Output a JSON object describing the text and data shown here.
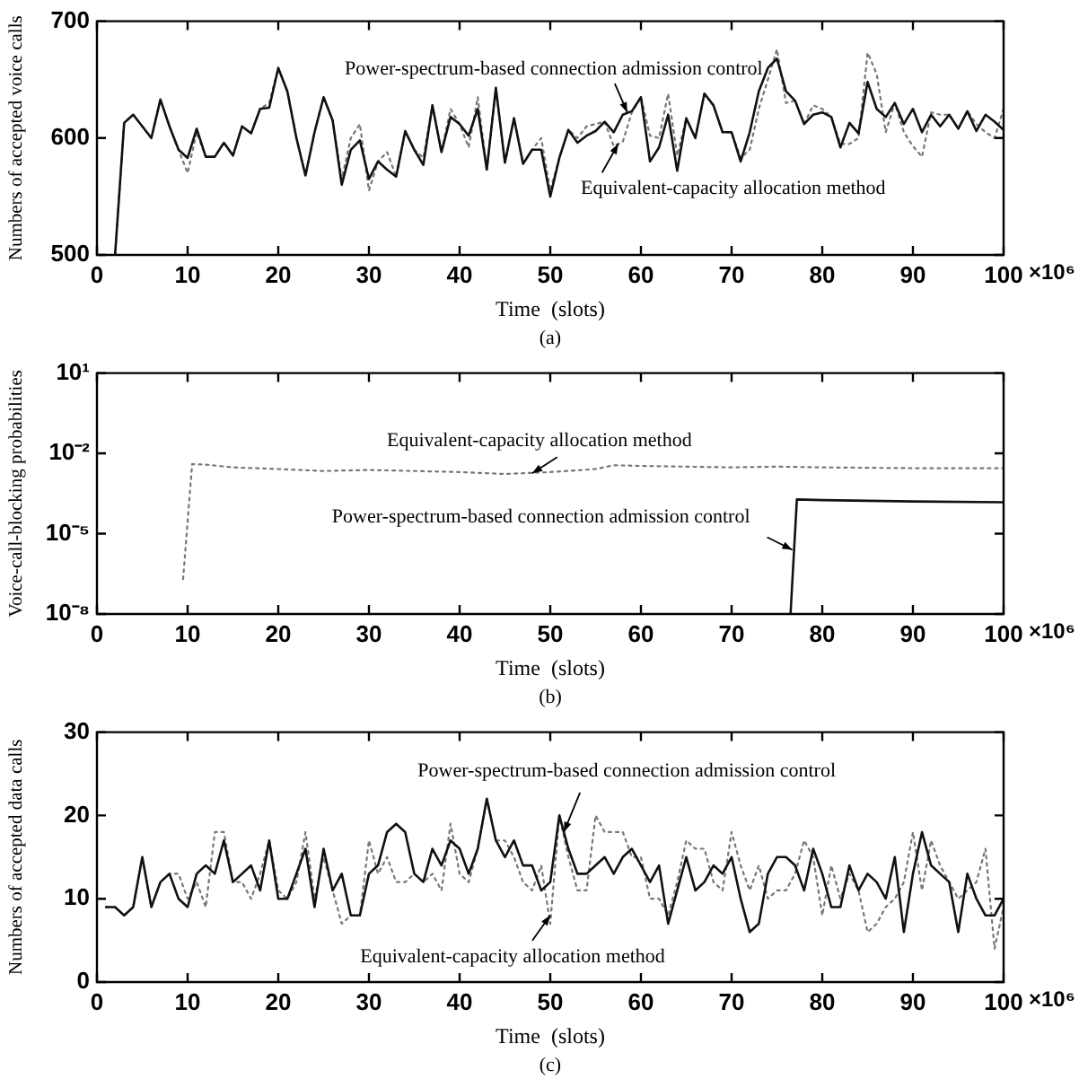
{
  "chart_data": [
    {
      "type": "line",
      "xlabel": "Time  (slots)",
      "ylabel": "Numbers of accepted voice calls",
      "x": [
        2,
        3,
        4,
        5,
        6,
        7,
        8,
        9,
        10,
        11,
        12,
        13,
        14,
        15,
        16,
        17,
        18,
        19,
        20,
        21,
        22,
        23,
        24,
        25,
        26,
        27,
        28,
        29,
        30,
        31,
        32,
        33,
        34,
        35,
        36,
        37,
        38,
        39,
        40,
        41,
        42,
        43,
        44,
        45,
        46,
        47,
        48,
        49,
        50,
        51,
        52,
        53,
        54,
        55,
        56,
        57,
        58,
        59,
        60,
        61,
        62,
        63,
        64,
        65,
        66,
        67,
        68,
        69,
        70,
        71,
        72,
        73,
        74,
        75,
        76,
        77,
        78,
        79,
        80,
        81,
        82,
        83,
        84,
        85,
        86,
        87,
        88,
        89,
        90,
        91,
        92,
        93,
        94,
        95,
        96,
        97,
        98,
        99,
        100
      ],
      "series": [
        {
          "color": "#111111",
          "line_style": "solid",
          "values": [
            500,
            613,
            620,
            610,
            600,
            633,
            610,
            590,
            583,
            608,
            584,
            584,
            596,
            585,
            610,
            604,
            625,
            626,
            660,
            640,
            600,
            568,
            605,
            635,
            615,
            560,
            590,
            598,
            565,
            580,
            573,
            567,
            606,
            590,
            577,
            628,
            588,
            618,
            612,
            602,
            625,
            573,
            643,
            579,
            617,
            578,
            590,
            590,
            550,
            583,
            607,
            596,
            602,
            606,
            614,
            605,
            620,
            623,
            635,
            580,
            592,
            620,
            572,
            617,
            600,
            638,
            628,
            605,
            605,
            580,
            605,
            640,
            660,
            668,
            640,
            632,
            612,
            620,
            622,
            618,
            592,
            613,
            604,
            648,
            625,
            618,
            630,
            612,
            625,
            605,
            620,
            610,
            620,
            608,
            623,
            606,
            620,
            614,
            607
          ]
        },
        {
          "color": "#777777",
          "line_style": "dotted",
          "values": [
            500,
            613,
            620,
            610,
            600,
            633,
            610,
            590,
            570,
            605,
            584,
            584,
            596,
            585,
            610,
            604,
            625,
            630,
            660,
            640,
            600,
            568,
            605,
            635,
            615,
            565,
            600,
            612,
            555,
            580,
            588,
            567,
            606,
            590,
            583,
            628,
            588,
            625,
            612,
            592,
            635,
            573,
            643,
            579,
            617,
            578,
            590,
            600,
            555,
            583,
            607,
            600,
            610,
            612,
            614,
            593,
            597,
            622,
            635,
            602,
            600,
            638,
            585,
            617,
            600,
            638,
            628,
            605,
            605,
            583,
            590,
            625,
            650,
            676,
            630,
            632,
            612,
            628,
            625,
            618,
            595,
            595,
            600,
            673,
            655,
            605,
            630,
            605,
            593,
            584,
            622,
            620,
            620,
            608,
            623,
            612,
            605,
            600,
            625
          ]
        }
      ],
      "xlim": [
        0,
        100
      ],
      "xticks": [
        0,
        10,
        20,
        30,
        40,
        50,
        60,
        70,
        80,
        90,
        100
      ],
      "ylim": [
        500,
        700
      ],
      "yticks": [
        500,
        600,
        700
      ],
      "annotations": [
        {
          "text": "Power-spectrum-based connection admission control",
          "x": 58.5,
          "y": 622
        },
        {
          "text": "Equivalent-capacity allocation method",
          "x": 57.5,
          "y": 595
        },
        "×10⁶",
        "(a)"
      ]
    },
    {
      "type": "line",
      "xlabel": "Time  (slots)",
      "ylabel": "Voice-call-blocking probabilities",
      "log": "y",
      "series": [
        {
          "color": "#777777",
          "line_style": "dotted",
          "x": [
            9.5,
            10.5,
            12,
            15,
            20,
            25,
            30,
            35,
            40,
            45,
            50,
            55,
            57,
            60,
            70,
            75,
            80,
            90,
            100
          ],
          "values": [
            2e-07,
            0.004,
            0.0038,
            0.003,
            0.0026,
            0.0022,
            0.0024,
            0.0022,
            0.002,
            0.0017,
            0.002,
            0.0026,
            0.0036,
            0.0034,
            0.003,
            0.0032,
            0.003,
            0.0028,
            0.0028
          ]
        },
        {
          "color": "#111111",
          "line_style": "solid",
          "x": [
            76.5,
            77.2,
            80,
            90,
            100
          ],
          "values": [
            1e-08,
            0.00019,
            0.00018,
            0.00016,
            0.00015
          ]
        }
      ],
      "xlim": [
        0,
        100
      ],
      "xticks": [
        0,
        10,
        20,
        30,
        40,
        50,
        60,
        70,
        80,
        90,
        100
      ],
      "ylim": [
        1e-08,
        10
      ],
      "yticks": [
        {
          "value": 1e-08,
          "label": "10⁻⁸"
        },
        {
          "value": 1e-05,
          "label": "10⁻⁵"
        },
        {
          "value": 0.01,
          "label": "10⁻²"
        },
        {
          "value": 10,
          "label": "10¹"
        }
      ],
      "annotations": [
        {
          "text": "Equivalent-capacity allocation method",
          "x": 48,
          "y": 0.0018
        },
        {
          "text": "Power-spectrum-based connection admission control",
          "x": 76.7,
          "y": 2.5e-06
        },
        "×10⁶",
        "(b)"
      ]
    },
    {
      "type": "line",
      "xlabel": "Time  (slots)",
      "ylabel": "Numbers of accepted data calls",
      "x": [
        1,
        2,
        3,
        4,
        5,
        6,
        7,
        8,
        9,
        10,
        11,
        12,
        13,
        14,
        15,
        16,
        17,
        18,
        19,
        20,
        21,
        22,
        23,
        24,
        25,
        26,
        27,
        28,
        29,
        30,
        31,
        32,
        33,
        34,
        35,
        36,
        37,
        38,
        39,
        40,
        41,
        42,
        43,
        44,
        45,
        46,
        47,
        48,
        49,
        50,
        51,
        52,
        53,
        54,
        55,
        56,
        57,
        58,
        59,
        60,
        61,
        62,
        63,
        64,
        65,
        66,
        67,
        68,
        69,
        70,
        71,
        72,
        73,
        74,
        75,
        76,
        77,
        78,
        79,
        80,
        81,
        82,
        83,
        84,
        85,
        86,
        87,
        88,
        89,
        90,
        91,
        92,
        93,
        94,
        95,
        96,
        97,
        98,
        99,
        100
      ],
      "series": [
        {
          "color": "#111111",
          "line_style": "solid",
          "values": [
            9,
            9,
            8,
            9,
            15,
            9,
            12,
            13,
            10,
            9,
            13,
            14,
            13,
            17,
            12,
            13,
            14,
            11,
            17,
            10,
            10,
            13,
            16,
            9,
            16,
            11,
            13,
            8,
            8,
            13,
            14,
            18,
            19,
            18,
            13,
            12,
            16,
            14,
            17,
            16,
            13,
            16,
            22,
            17,
            15,
            17,
            14,
            14,
            11,
            12,
            20,
            16,
            13,
            13,
            14,
            15,
            13,
            15,
            16,
            14,
            12,
            14,
            7,
            11,
            15,
            11,
            12,
            14,
            13,
            15,
            10,
            6,
            7,
            13,
            15,
            15,
            14,
            11,
            16,
            13,
            9,
            9,
            14,
            11,
            13,
            12,
            10,
            15,
            6,
            13,
            18,
            14,
            13,
            12,
            6,
            13,
            10,
            8,
            8,
            10
          ]
        },
        {
          "color": "#777777",
          "line_style": "dotted",
          "values": [
            9,
            9,
            8,
            9,
            15,
            9,
            12,
            13,
            13,
            10,
            12,
            9,
            18,
            18,
            12,
            12,
            10,
            13,
            17,
            11,
            10,
            12,
            18,
            10,
            15,
            11,
            7,
            8,
            8,
            17,
            13,
            15,
            12,
            12,
            13,
            12,
            13,
            11,
            19,
            13,
            12,
            16,
            22,
            17,
            17,
            15,
            12,
            11,
            14,
            7,
            20,
            15,
            11,
            11,
            20,
            18,
            18,
            18,
            15,
            15,
            10,
            10,
            8,
            12,
            17,
            16,
            16,
            12,
            11,
            18,
            14,
            11,
            14,
            10,
            11,
            11,
            13,
            17,
            15,
            8,
            14,
            10,
            13,
            11,
            6,
            7,
            9,
            10,
            12,
            18,
            11,
            17,
            14,
            12,
            10,
            11,
            12,
            16,
            4,
            9
          ]
        }
      ],
      "xlim": [
        0,
        100
      ],
      "xticks": [
        0,
        10,
        20,
        30,
        40,
        50,
        60,
        70,
        80,
        90,
        100
      ],
      "ylim": [
        0,
        30
      ],
      "yticks": [
        0,
        10,
        20,
        30
      ],
      "annotations": [
        {
          "text": "Power-spectrum-based connection admission control",
          "x": 51.5,
          "y": 18
        },
        {
          "text": "Equivalent-capacity allocation method",
          "x": 50,
          "y": 8
        },
        "×10⁶",
        "(c)"
      ]
    }
  ]
}
